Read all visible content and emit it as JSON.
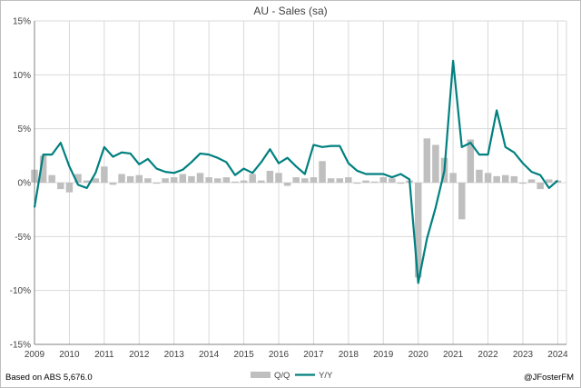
{
  "chart_data": {
    "type": "bar+line",
    "title": "AU - Sales (sa)",
    "ylim": [
      -15,
      15
    ],
    "y_ticks": [
      "-15%",
      "-10%",
      "-5%",
      "0%",
      "5%",
      "10%",
      "15%"
    ],
    "y_tick_values": [
      -15,
      -10,
      -5,
      0,
      5,
      10,
      15
    ],
    "x_ticks": [
      "2009",
      "2010",
      "2011",
      "2012",
      "2013",
      "2014",
      "2015",
      "2016",
      "2017",
      "2018",
      "2019",
      "2020",
      "2021",
      "2022",
      "2023",
      "2024"
    ],
    "x_range": [
      2009.0,
      2024.25
    ],
    "grid": true,
    "legend": "bottom-center",
    "colors": {
      "qq": "#bfbfbf",
      "yy": "#00807f",
      "grid": "#d9d9d9",
      "axis": "#808080"
    },
    "series": [
      {
        "name": "Q/Q",
        "kind": "bar",
        "x": [
          2009.0,
          2009.25,
          2009.5,
          2009.75,
          2010.0,
          2010.25,
          2010.5,
          2010.75,
          2011.0,
          2011.25,
          2011.5,
          2011.75,
          2012.0,
          2012.25,
          2012.5,
          2012.75,
          2013.0,
          2013.25,
          2013.5,
          2013.75,
          2014.0,
          2014.25,
          2014.5,
          2014.75,
          2015.0,
          2015.25,
          2015.5,
          2015.75,
          2016.0,
          2016.25,
          2016.5,
          2016.75,
          2017.0,
          2017.25,
          2017.5,
          2017.75,
          2018.0,
          2018.25,
          2018.5,
          2018.75,
          2019.0,
          2019.25,
          2019.5,
          2019.75,
          2020.0,
          2020.25,
          2020.5,
          2020.75,
          2021.0,
          2021.25,
          2021.5,
          2021.75,
          2022.0,
          2022.25,
          2022.5,
          2022.75,
          2023.0,
          2023.25,
          2023.5,
          2023.75,
          2024.0
        ],
        "values": [
          1.2,
          2.5,
          0.7,
          -0.6,
          -0.9,
          0.8,
          0.2,
          0.4,
          1.5,
          -0.2,
          0.8,
          0.6,
          0.7,
          0.4,
          -0.1,
          0.4,
          0.5,
          0.8,
          0.6,
          0.9,
          0.5,
          0.4,
          0.5,
          0.1,
          0.2,
          0.8,
          0.2,
          1.1,
          0.9,
          -0.3,
          0.5,
          0.4,
          0.5,
          2.0,
          0.4,
          0.4,
          0.5,
          -0.1,
          0.2,
          0.1,
          0.5,
          0.4,
          -0.1,
          0.2,
          -8.8,
          4.1,
          3.5,
          2.3,
          0.9,
          -3.4,
          4.0,
          1.2,
          0.9,
          0.6,
          0.7,
          0.6,
          -0.1,
          0.3,
          -0.6,
          0.3,
          0.2
        ]
      },
      {
        "name": "Y/Y",
        "kind": "line",
        "x": [
          2009.0,
          2009.25,
          2009.5,
          2009.75,
          2010.0,
          2010.25,
          2010.5,
          2010.75,
          2011.0,
          2011.25,
          2011.5,
          2011.75,
          2012.0,
          2012.25,
          2012.5,
          2012.75,
          2013.0,
          2013.25,
          2013.5,
          2013.75,
          2014.0,
          2014.25,
          2014.5,
          2014.75,
          2015.0,
          2015.25,
          2015.5,
          2015.75,
          2016.0,
          2016.25,
          2016.5,
          2016.75,
          2017.0,
          2017.25,
          2017.5,
          2017.75,
          2018.0,
          2018.25,
          2018.5,
          2018.75,
          2019.0,
          2019.25,
          2019.5,
          2019.75,
          2020.0,
          2020.25,
          2020.5,
          2020.75,
          2021.0,
          2021.25,
          2021.5,
          2021.75,
          2022.0,
          2022.25,
          2022.5,
          2022.75,
          2023.0,
          2023.25,
          2023.5,
          2023.75,
          2024.0
        ],
        "values": [
          -2.3,
          2.6,
          2.6,
          3.7,
          1.5,
          -0.2,
          -0.5,
          0.9,
          3.3,
          2.4,
          2.8,
          2.7,
          1.7,
          2.2,
          1.3,
          1.0,
          0.9,
          1.2,
          1.9,
          2.7,
          2.6,
          2.3,
          1.9,
          0.7,
          1.3,
          0.9,
          1.9,
          3.1,
          1.8,
          2.3,
          1.5,
          0.8,
          3.5,
          3.3,
          3.4,
          3.4,
          1.8,
          1.1,
          0.8,
          0.8,
          0.8,
          0.5,
          0.8,
          0.3,
          -9.3,
          -5.2,
          -2.3,
          1.1,
          11.3,
          3.3,
          3.7,
          2.6,
          2.6,
          6.7,
          3.3,
          2.8,
          1.8,
          1.0,
          0.7,
          -0.5,
          0.2
        ]
      }
    ]
  },
  "footer": {
    "source": "Based on ABS 5,676.0",
    "credit": "@JFosterFM"
  }
}
